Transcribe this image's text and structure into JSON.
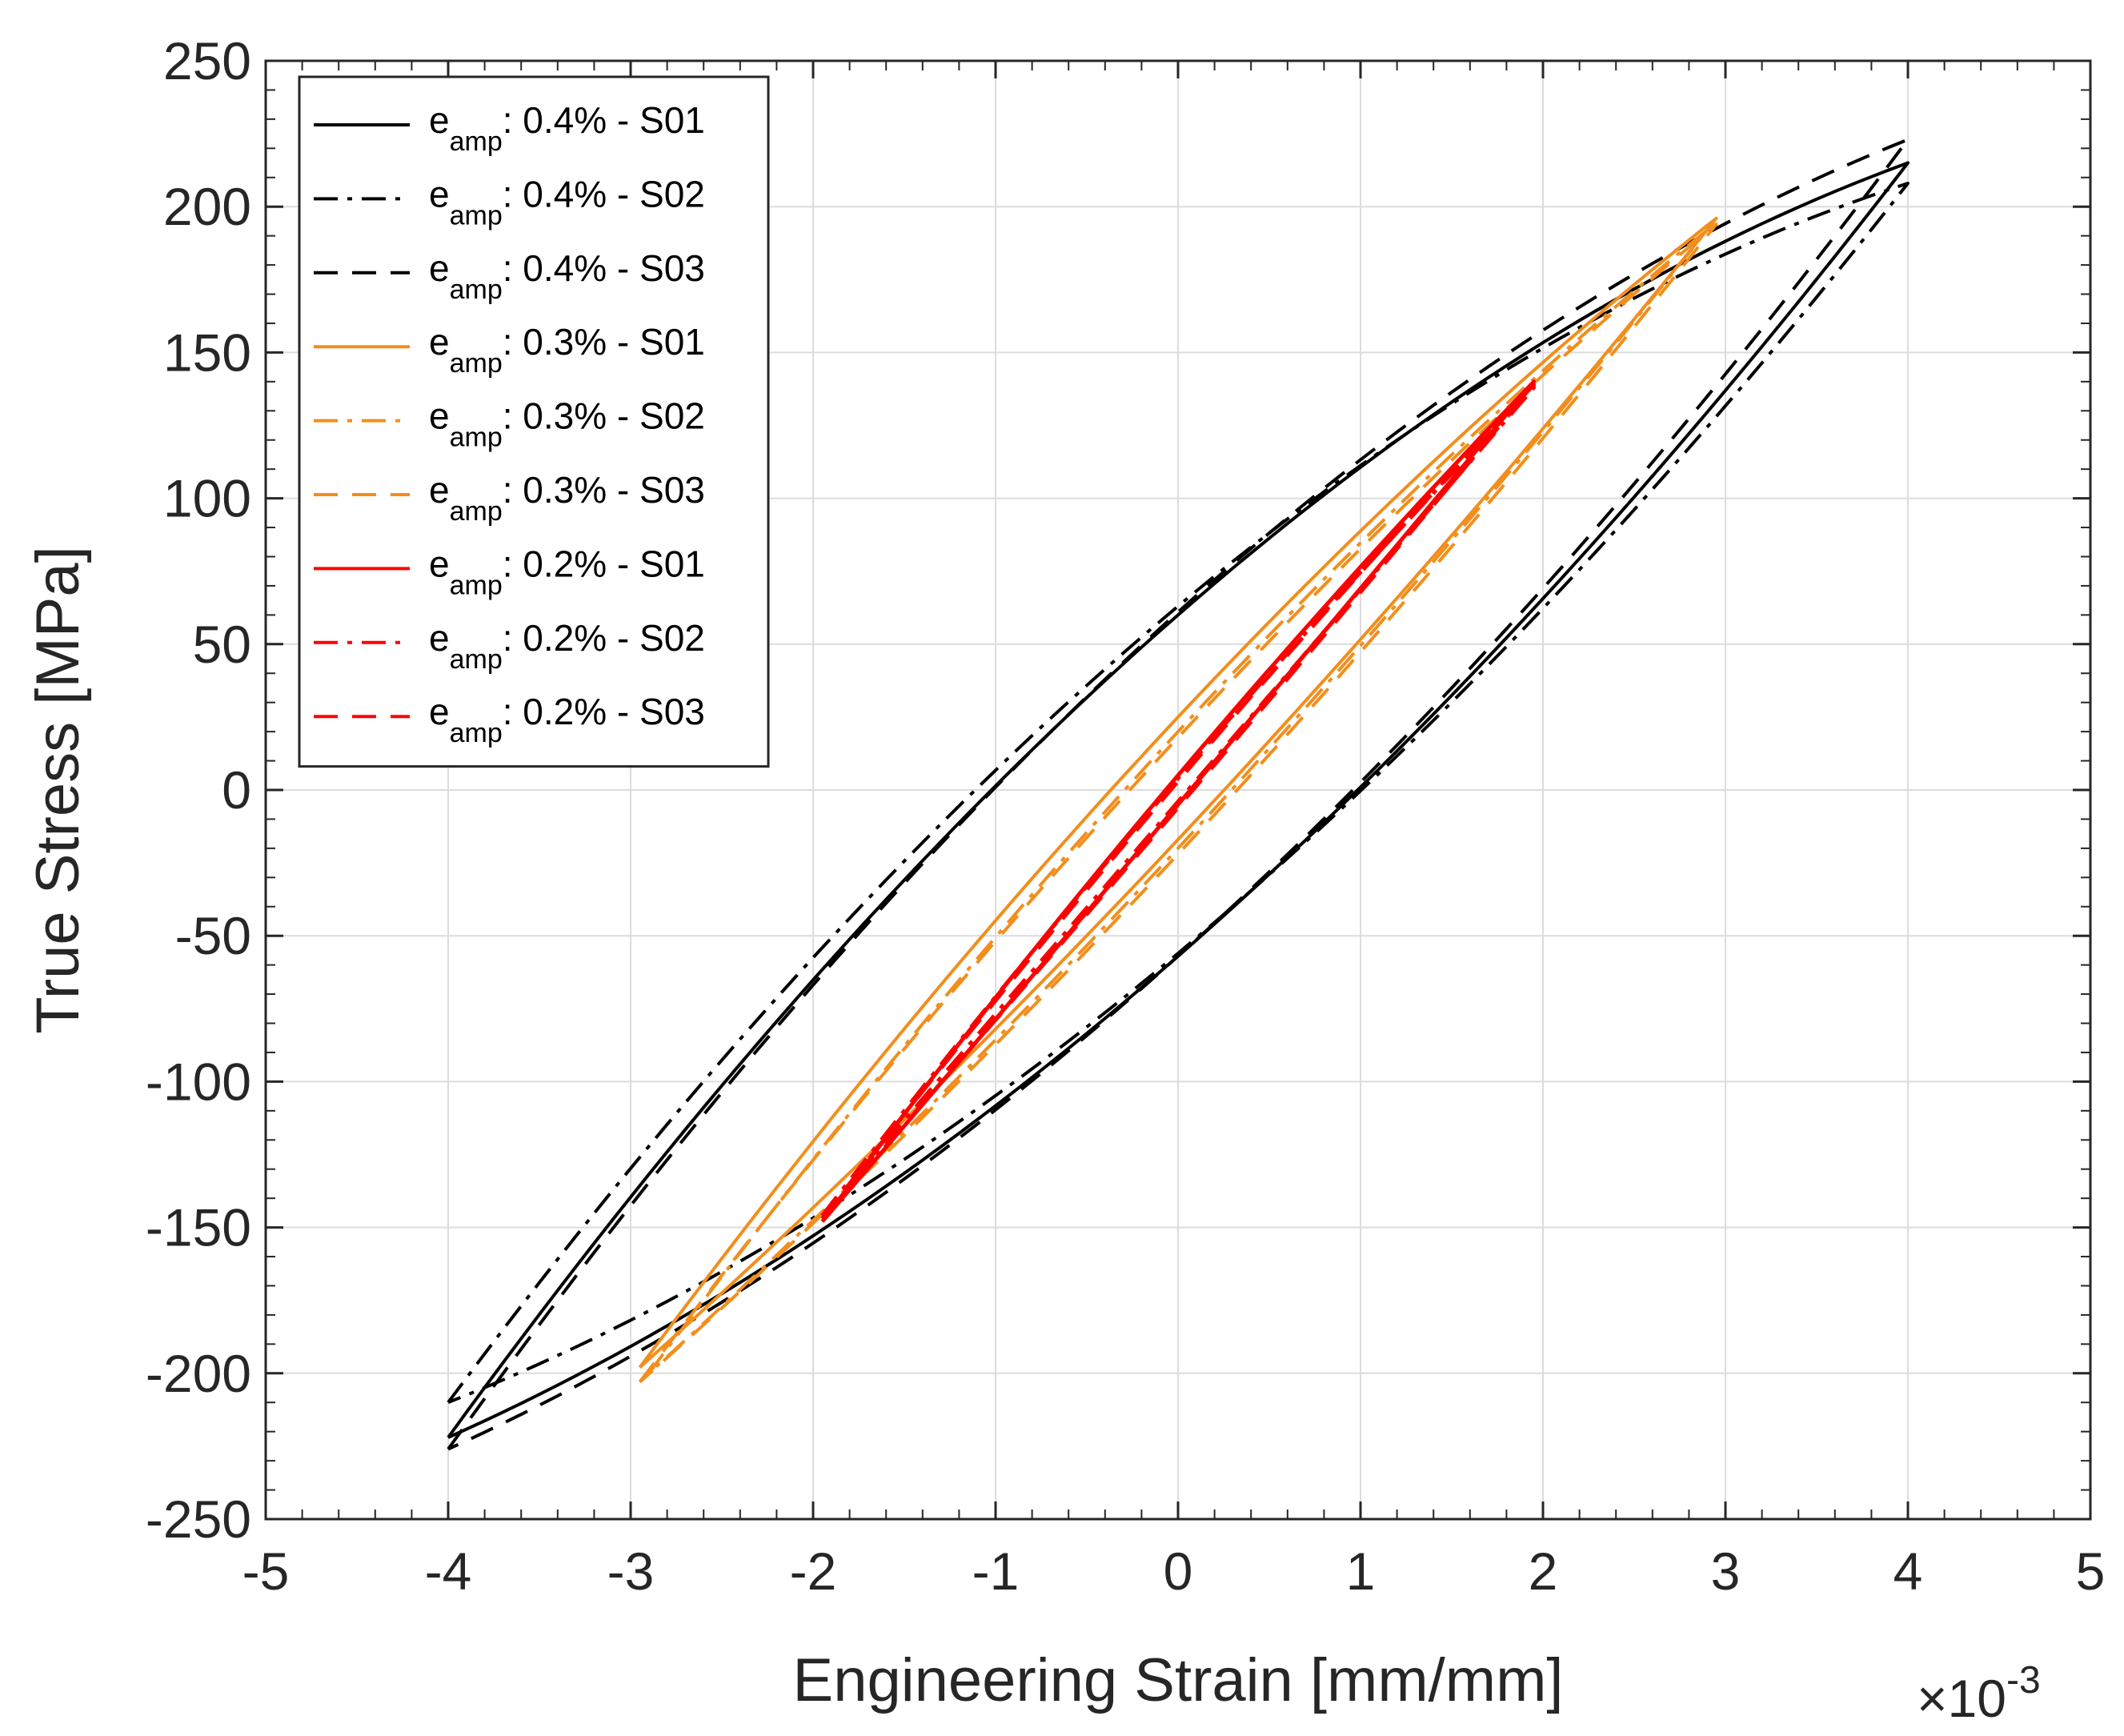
{
  "chart_data": {
    "type": "line",
    "xlabel": "Engineering Strain [mm/mm]",
    "ylabel": "True Stress [MPa]",
    "x_multiplier_label": "×10",
    "x_multiplier_exp": "-3",
    "xlim": [
      -5,
      5
    ],
    "ylim": [
      -250,
      250
    ],
    "x_ticks": [
      "-5",
      "-4",
      "-3",
      "-2",
      "-1",
      "0",
      "1",
      "2",
      "3",
      "4",
      "5"
    ],
    "y_ticks": [
      "250",
      "200",
      "150",
      "100",
      "50",
      "0",
      "-50",
      "-100",
      "-150",
      "-200",
      "-250"
    ],
    "grid": true,
    "legend_position": "top-left",
    "series": [
      {
        "name": "e_amp: 0.4% - S01",
        "legend_main": "e",
        "legend_sub": "amp",
        "legend_rest": ": 0.4% - S01",
        "color": "#000000",
        "dash": "solid",
        "amp": 4,
        "top": 215,
        "bottom": -222,
        "upper_mid": 60,
        "lower_mid": -57
      },
      {
        "name": "e_amp: 0.4% - S02",
        "legend_main": "e",
        "legend_sub": "amp",
        "legend_rest": ": 0.4% - S02",
        "color": "#000000",
        "dash": "dashdot",
        "amp": 4,
        "top": 208,
        "bottom": -210,
        "upper_mid": 63,
        "lower_mid": -56
      },
      {
        "name": "e_amp: 0.4% - S03",
        "legend_main": "e",
        "legend_sub": "amp",
        "legend_rest": ": 0.4% - S03",
        "color": "#000000",
        "dash": "dashed",
        "amp": 4,
        "top": 223,
        "bottom": -226,
        "upper_mid": 61,
        "lower_mid": -57
      },
      {
        "name": "e_amp: 0.3% - S01",
        "legend_main": "e",
        "legend_sub": "amp",
        "legend_rest": ": 0.3% - S01",
        "color": "#f28e1c",
        "dash": "solid",
        "amp": 2.95,
        "top": 196,
        "bottom": -198,
        "upper_mid": 25,
        "lower_mid": -17
      },
      {
        "name": "e_amp: 0.3% - S02",
        "legend_main": "e",
        "legend_sub": "amp",
        "legend_rest": ": 0.3% - S02",
        "color": "#f28e1c",
        "dash": "dashdot",
        "amp": 2.9,
        "top": 192,
        "bottom": -200,
        "upper_mid": 20,
        "lower_mid": -20
      },
      {
        "name": "e_amp: 0.3% - S03",
        "legend_main": "e",
        "legend_sub": "amp",
        "legend_rest": ": 0.3% - S03",
        "color": "#f28e1c",
        "dash": "dashed",
        "amp": 2.95,
        "top": 194,
        "bottom": -203,
        "upper_mid": 18,
        "lower_mid": -22
      },
      {
        "name": "e_amp: 0.2% - S01",
        "legend_main": "e",
        "legend_sub": "amp",
        "legend_rest": ": 0.2% - S01",
        "color": "#ff0000",
        "dash": "solid",
        "amp": 1.95,
        "top": 140,
        "bottom": -148,
        "upper_mid": 5,
        "lower_mid": -5
      },
      {
        "name": "e_amp: 0.2% - S02",
        "legend_main": "e",
        "legend_sub": "amp",
        "legend_rest": ": 0.2% - S02",
        "color": "#ff0000",
        "dash": "dashdot",
        "amp": 1.95,
        "top": 138,
        "bottom": -146,
        "upper_mid": 4,
        "lower_mid": -4
      },
      {
        "name": "e_amp: 0.2% - S03",
        "legend_main": "e",
        "legend_sub": "amp",
        "legend_rest": ": 0.2% - S03",
        "color": "#ff0000",
        "dash": "dashed",
        "amp": 1.95,
        "top": 139,
        "bottom": -147,
        "upper_mid": 3,
        "lower_mid": -6
      }
    ]
  }
}
